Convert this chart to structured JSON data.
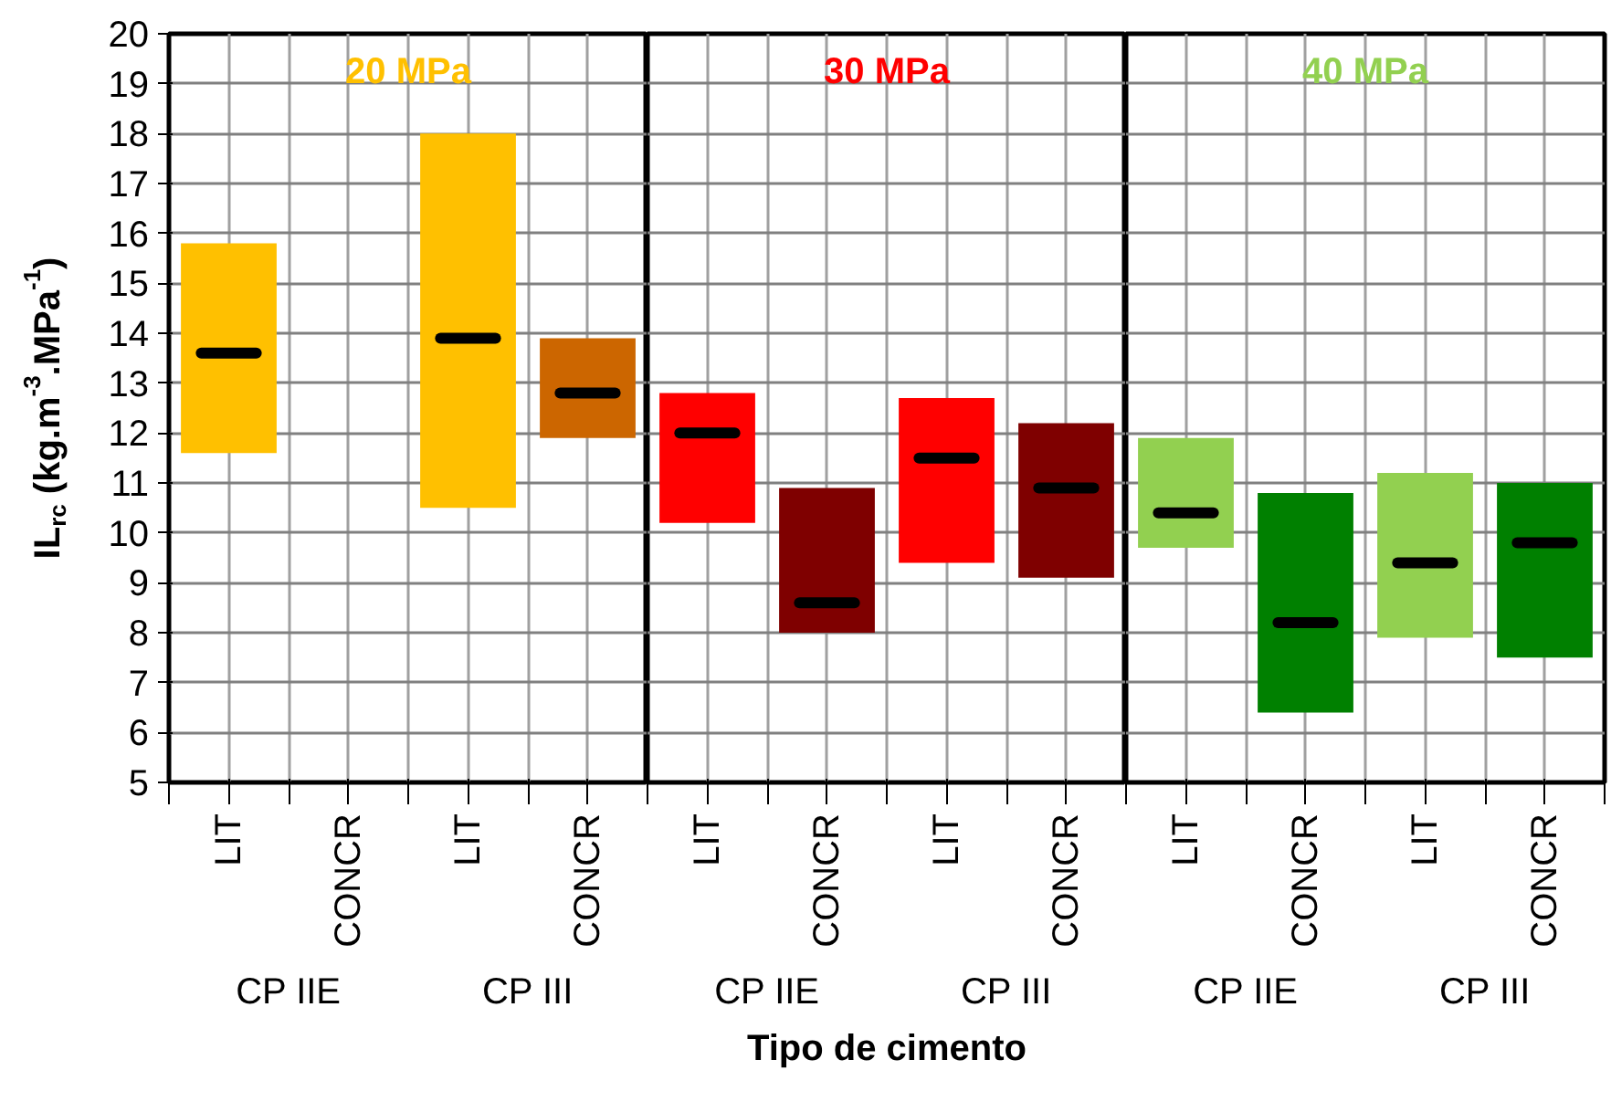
{
  "chart_data": [
    {
      "type": "box",
      "title": "20 MPa",
      "ylabel": "IL$_{rc}$ (kg.m$^{-3}$.MPa$^{-1}$)",
      "categories": [
        "LIT",
        "CONCR",
        "LIT",
        "CONCR"
      ],
      "ylim": [
        5,
        20
      ],
      "yticks": [
        5,
        6,
        7,
        8,
        9,
        10,
        11,
        12,
        13,
        14,
        15,
        16,
        17,
        18,
        19,
        20
      ],
      "colors": [
        "#ffc000",
        "#ffc000",
        "#ffc000",
        "#cc6600"
      ],
      "boxes": [
        {
          "low": 11.6,
          "q1": 11.6,
          "median": 13.6,
          "q3": 15.8,
          "high": 15.8
        },
        null,
        {
          "low": 10.5,
          "q1": 10.5,
          "median": 13.9,
          "q3": 18.0,
          "high": 18.0
        },
        {
          "low": 11.9,
          "q1": 11.9,
          "median": 12.8,
          "q3": 13.9,
          "high": 13.9
        }
      ],
      "annotations": [
        "CP IIE",
        "CP III"
      ],
      "grid": true
    },
    {
      "type": "box",
      "title": "30 MPa",
      "xlabel": "Tipo de cimento",
      "categories": [
        "LIT",
        "CONCR",
        "LIT",
        "CONCR"
      ],
      "ylim": [
        5,
        20
      ],
      "yticks": [
        5,
        6,
        7,
        8,
        9,
        10,
        11,
        12,
        13,
        14,
        15,
        16,
        17,
        18,
        19,
        20
      ],
      "tick_labels": "x",
      "colors": [
        "#ff0000",
        "#7f0000",
        "#ff0000",
        "#7f0000"
      ],
      "boxes": [
        {
          "low": 10.2,
          "q1": 10.2,
          "median": 12.0,
          "q3": 12.8,
          "high": 12.8
        },
        {
          "low": 8.0,
          "q1": 8.0,
          "median": 8.6,
          "q3": 10.9,
          "high": 10.9
        },
        {
          "low": 9.4,
          "q1": 9.4,
          "median": 11.5,
          "q3": 12.7,
          "high": 12.7
        },
        {
          "low": 9.1,
          "q1": 9.1,
          "median": 10.9,
          "q3": 12.2,
          "high": 12.2
        }
      ],
      "annotations": [
        "CP IIE",
        "CP III"
      ],
      "grid": true
    },
    {
      "type": "box",
      "title": "40 MPa",
      "categories": [
        "LIT",
        "CONCR",
        "LIT",
        "CONCR"
      ],
      "ylim": [
        5,
        20
      ],
      "yticks": [
        5,
        6,
        7,
        8,
        9,
        10,
        11,
        12,
        13,
        14,
        15,
        16,
        17,
        18,
        19,
        20
      ],
      "tick_labels": "x",
      "colors": [
        "#92d050",
        "#008000",
        "#92d050",
        "#008000"
      ],
      "boxes": [
        {
          "low": 9.7,
          "q1": 9.7,
          "median": 10.4,
          "q3": 11.9,
          "high": 11.9
        },
        {
          "low": 6.4,
          "q1": 6.4,
          "median": 8.2,
          "q3": 10.8,
          "high": 10.8
        },
        {
          "low": 7.9,
          "q1": 7.9,
          "median": 9.4,
          "q3": 11.2,
          "high": 11.2
        },
        {
          "low": 7.5,
          "q1": 7.5,
          "median": 9.8,
          "q3": 11.0,
          "high": 11.0
        }
      ],
      "annotations": [
        "CP IIE",
        "CP III"
      ],
      "grid": true
    }
  ]
}
